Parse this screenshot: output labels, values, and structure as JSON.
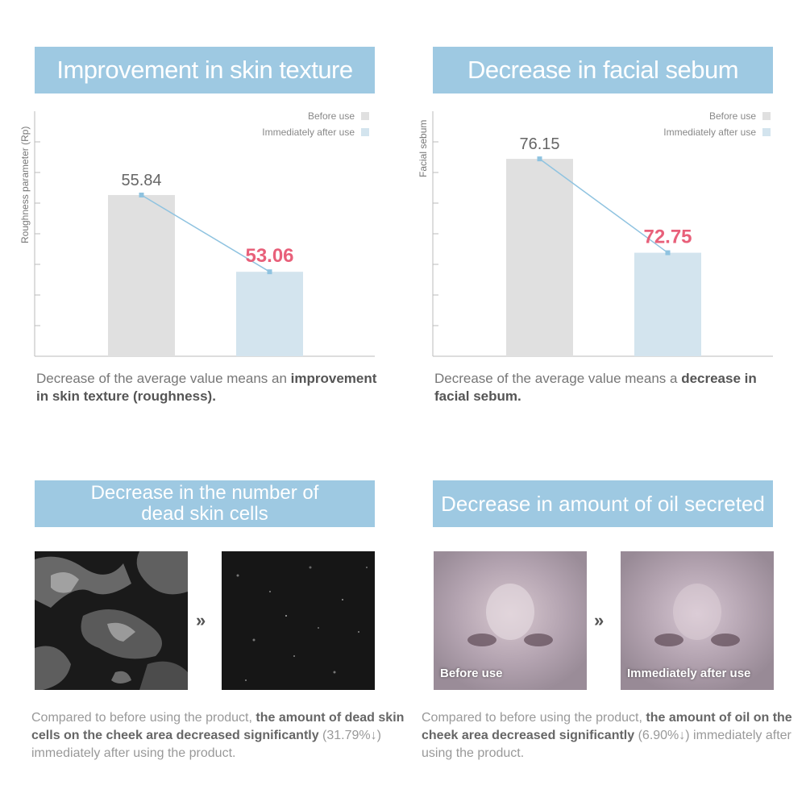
{
  "sections": {
    "texture": {
      "title": "Improvement in skin texture",
      "caption_plain": "Decrease of the average value means an ",
      "caption_bold": "improvement in skin texture (roughness)."
    },
    "sebum": {
      "title": "Decrease in facial sebum",
      "caption_plain": "Decrease of the average value means a ",
      "caption_bold": "decrease in facial sebum."
    },
    "dead_skin": {
      "title_line1": "Decrease in the number of",
      "title_line2": "dead skin cells",
      "caption_plain1": "Compared to before using the product, ",
      "caption_bold": "the amount of dead skin cells on the cheek area decreased significantly",
      "caption_plain2": " (31.79%↓) immediately after using the product."
    },
    "oil": {
      "title": "Decrease in amount of oil secreted",
      "caption_plain1": "Compared to before using the product, ",
      "caption_bold": "the amount of oil on the cheek area decreased significantly",
      "caption_plain2": " (6.90%↓) immediately after using the product.",
      "before_label": "Before use",
      "after_label": "Immediately after use"
    }
  },
  "arrow_glyph": "»",
  "colors": {
    "banner": "#9ec9e2",
    "before_bar": "#e0e0e0",
    "after_bar": "#d3e4ee",
    "line": "#8fc3e0",
    "highlight": "#e8607a"
  },
  "chart_data": [
    {
      "type": "bar",
      "title": "Improvement in skin texture",
      "ylabel": "Roughness parameter (Rp)",
      "xlabel": "",
      "categories": [
        "Before use",
        "Immediately after use"
      ],
      "values": [
        55.84,
        53.06
      ],
      "legend": [
        "Before use",
        "Immediately after use"
      ],
      "legend_position": "top-right",
      "ylim": [
        50,
        58
      ]
    },
    {
      "type": "bar",
      "title": "Decrease in facial sebum",
      "ylabel": "Facial sebum",
      "xlabel": "",
      "categories": [
        "Before use",
        "Immediately after use"
      ],
      "values": [
        76.15,
        72.75
      ],
      "legend": [
        "Before use",
        "Immediately after use"
      ],
      "legend_position": "top-right",
      "ylim": [
        69,
        77
      ]
    }
  ]
}
